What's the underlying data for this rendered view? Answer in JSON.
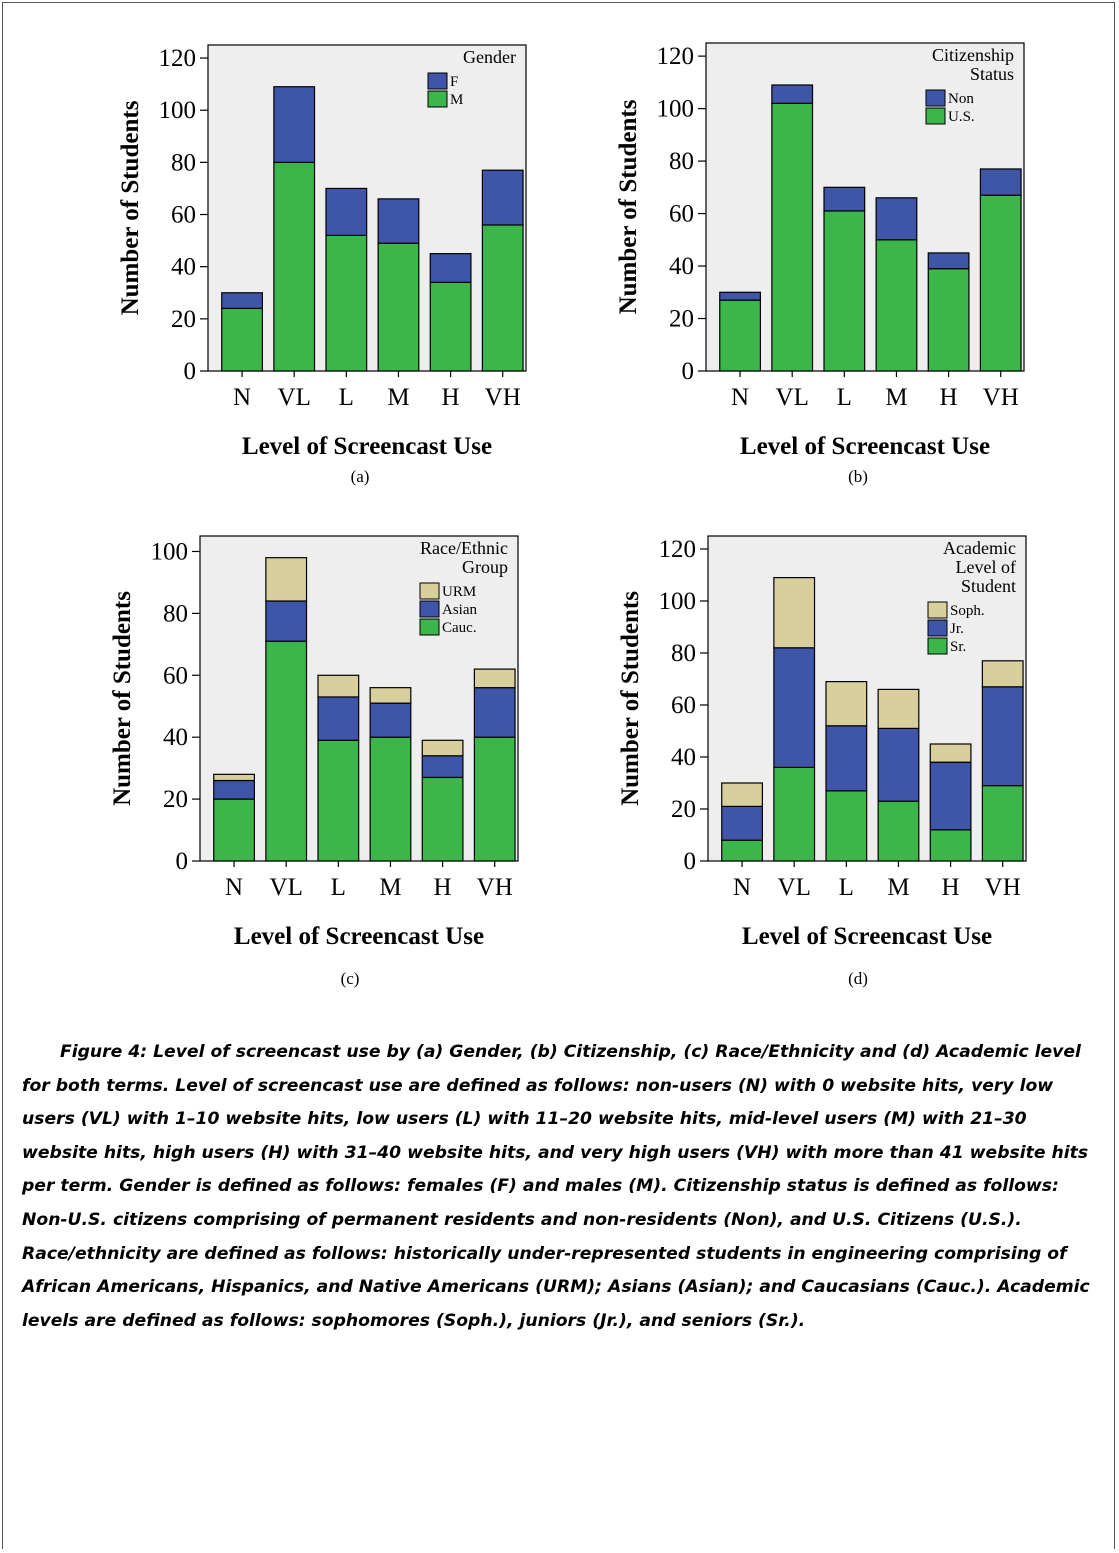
{
  "figure": {
    "caption": "Figure 4: Level of screencast use by (a) Gender, (b) Citizenship, (c) Race/Ethnicity and (d) Academic level  for both terms.  Level of screencast use are defined as follows: non-users (N) with 0 website hits, very low users (VL) with 1–10 website hits, low users (L) with 11–20 website hits, mid-level users (M) with 21–30 website hits, high users (H) with 31–40 website hits, and very high users (VH) with more than 41 website hits per term.  Gender is defined as follows:  females (F) and males (M). Citizenship status is defined as follows:  Non-U.S. citizens comprising of permanent residents and non-residents (Non), and U.S. Citizens (U.S.). Race/ethnicity are defined as follows:  historically under-represented students in engineering comprising of African Americans, Hispanics, and Native Americans (URM); Asians (Asian); and Caucasians (Cauc.). Academic levels are defined as follows: sophomores (Soph.), juniors (Jr.), and  seniors (Sr.)."
  },
  "colors": {
    "green": "#3cb54a",
    "blue": "#3f55a8",
    "tan": "#d8cf9d",
    "plot_bg": "#eeeeee"
  },
  "chart_data": [
    {
      "type": "bar",
      "panel_label": "(a)",
      "categories": [
        "N",
        "VL",
        "L",
        "M",
        "H",
        "VH"
      ],
      "xlabel": "Level of Screencast Use",
      "ylabel": "Number of Students",
      "ylim": [
        0,
        125
      ],
      "yticks": [
        0,
        20,
        40,
        60,
        80,
        100,
        120
      ],
      "legend_title": [
        "Gender"
      ],
      "series": [
        {
          "name": "M",
          "color": "#3cb54a",
          "values": [
            24,
            80,
            52,
            49,
            34,
            56
          ]
        },
        {
          "name": "F",
          "color": "#3f55a8",
          "values": [
            6,
            29,
            18,
            17,
            11,
            21
          ]
        }
      ]
    },
    {
      "type": "bar",
      "panel_label": "(b)",
      "categories": [
        "N",
        "VL",
        "L",
        "M",
        "H",
        "VH"
      ],
      "xlabel": "Level of Screencast Use",
      "ylabel": "Number of Students",
      "ylim": [
        0,
        125
      ],
      "yticks": [
        0,
        20,
        40,
        60,
        80,
        100,
        120
      ],
      "legend_title": [
        "Citizenship",
        "Status"
      ],
      "series": [
        {
          "name": "U.S.",
          "color": "#3cb54a",
          "values": [
            27,
            102,
            61,
            50,
            39,
            67
          ]
        },
        {
          "name": "Non",
          "color": "#3f55a8",
          "values": [
            3,
            7,
            9,
            16,
            6,
            10
          ]
        }
      ]
    },
    {
      "type": "bar",
      "panel_label": "(c)",
      "categories": [
        "N",
        "VL",
        "L",
        "M",
        "H",
        "VH"
      ],
      "xlabel": "Level of Screencast Use",
      "ylabel": "Number of Students",
      "ylim": [
        0,
        105
      ],
      "yticks": [
        0,
        20,
        40,
        60,
        80,
        100
      ],
      "legend_title": [
        "Race/Ethnic",
        "Group"
      ],
      "series": [
        {
          "name": "Cauc.",
          "color": "#3cb54a",
          "values": [
            20,
            71,
            39,
            40,
            27,
            40
          ]
        },
        {
          "name": "Asian",
          "color": "#3f55a8",
          "values": [
            6,
            13,
            14,
            11,
            7,
            16
          ]
        },
        {
          "name": "URM",
          "color": "#d8cf9d",
          "values": [
            2,
            14,
            7,
            5,
            5,
            6
          ]
        }
      ]
    },
    {
      "type": "bar",
      "panel_label": "(d)",
      "categories": [
        "N",
        "VL",
        "L",
        "M",
        "H",
        "VH"
      ],
      "xlabel": "Level of Screencast Use",
      "ylabel": "Number of Students",
      "ylim": [
        0,
        125
      ],
      "yticks": [
        0,
        20,
        40,
        60,
        80,
        100,
        120
      ],
      "legend_title": [
        "Academic",
        "Level of",
        "Student"
      ],
      "series": [
        {
          "name": "Sr.",
          "color": "#3cb54a",
          "values": [
            8,
            36,
            27,
            23,
            12,
            29
          ]
        },
        {
          "name": "Jr.",
          "color": "#3f55a8",
          "values": [
            13,
            46,
            25,
            28,
            26,
            38
          ]
        },
        {
          "name": "Soph.",
          "color": "#d8cf9d",
          "values": [
            9,
            27,
            17,
            15,
            7,
            10
          ]
        }
      ]
    }
  ]
}
